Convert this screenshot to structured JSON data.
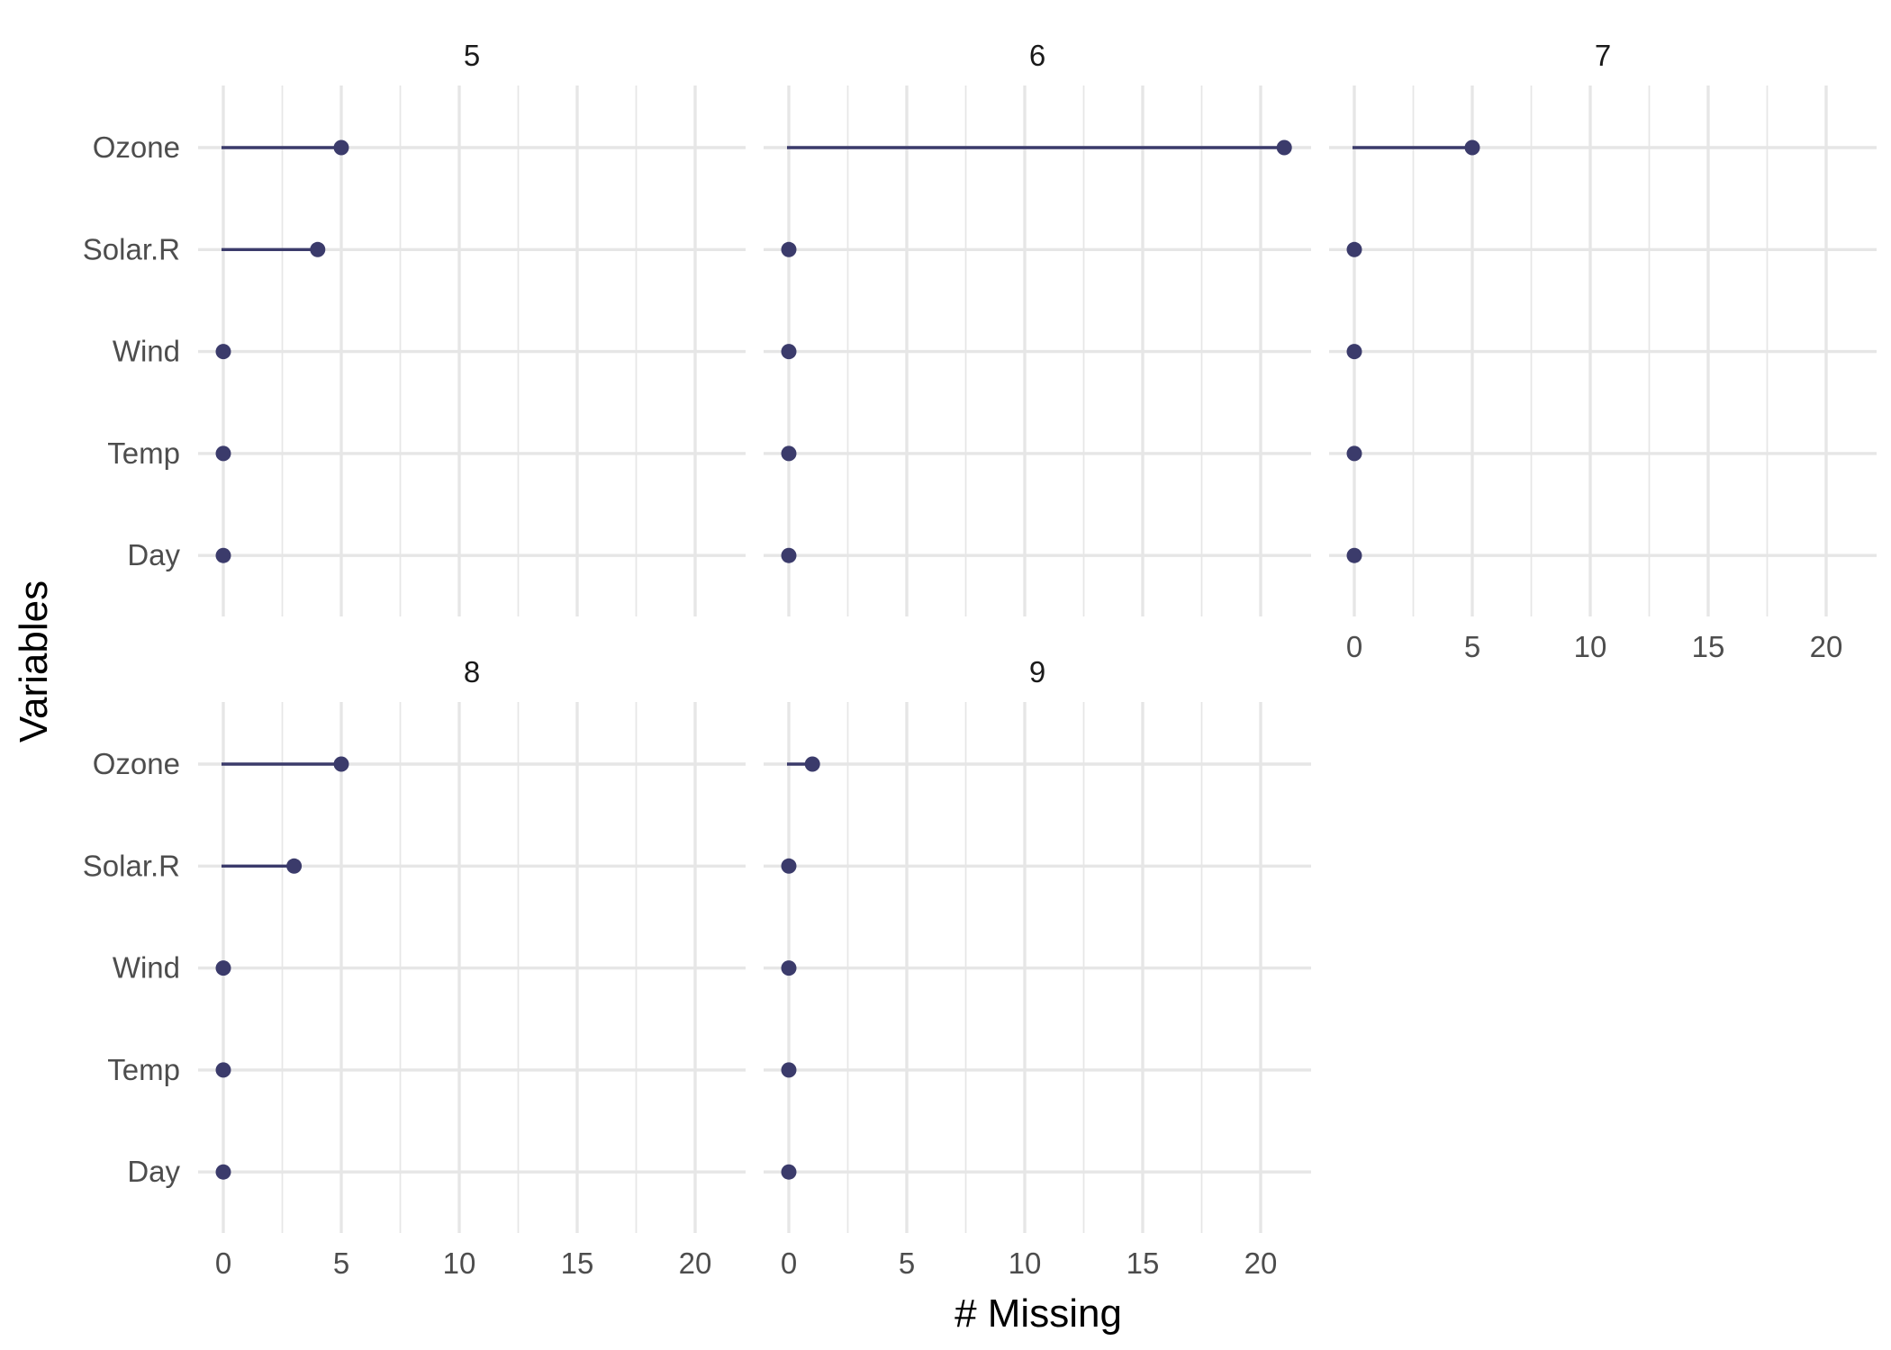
{
  "chart_data": {
    "type": "lollipop",
    "xlabel": "# Missing",
    "ylabel": "Variables",
    "variables": [
      "Ozone",
      "Solar.R",
      "Wind",
      "Temp",
      "Day"
    ],
    "xlim": [
      0,
      21
    ],
    "x_ticks": [
      "0",
      "5",
      "10",
      "15",
      "20"
    ],
    "x_tick_values": [
      0,
      5,
      10,
      15,
      20
    ],
    "grid": true,
    "colors": {
      "segment": "#3b3b6b",
      "point": "#3b3b6b",
      "grid": "#e6e6e6"
    },
    "panels": [
      {
        "label": "5",
        "values": {
          "Ozone": 5,
          "Solar.R": 4,
          "Wind": 0,
          "Temp": 0,
          "Day": 0
        }
      },
      {
        "label": "6",
        "values": {
          "Ozone": 21,
          "Solar.R": 0,
          "Wind": 0,
          "Temp": 0,
          "Day": 0
        }
      },
      {
        "label": "7",
        "values": {
          "Ozone": 5,
          "Solar.R": 0,
          "Wind": 0,
          "Temp": 0,
          "Day": 0
        }
      },
      {
        "label": "8",
        "values": {
          "Ozone": 5,
          "Solar.R": 3,
          "Wind": 0,
          "Temp": 0,
          "Day": 0
        }
      },
      {
        "label": "9",
        "values": {
          "Ozone": 1,
          "Solar.R": 0,
          "Wind": 0,
          "Temp": 0,
          "Day": 0
        }
      }
    ]
  }
}
